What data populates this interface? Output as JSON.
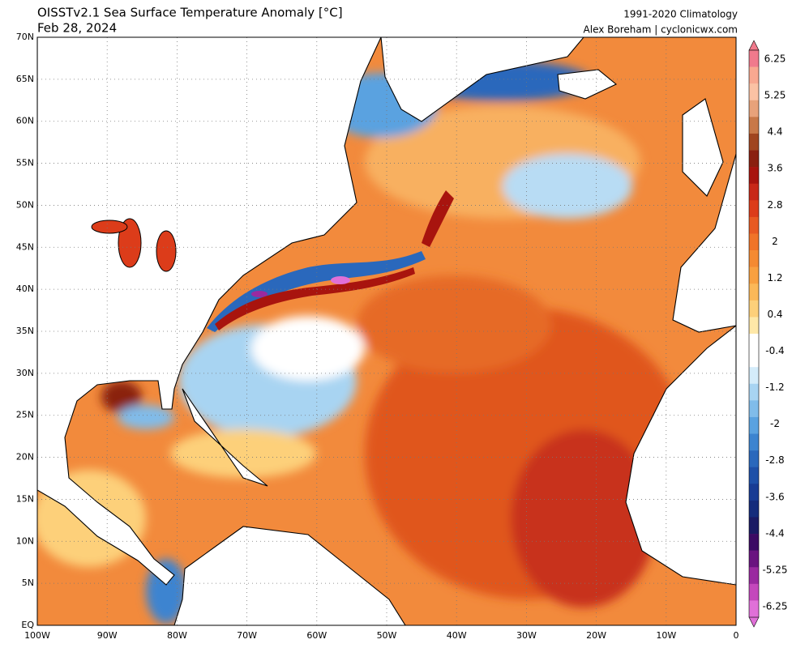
{
  "header": {
    "title": "OISSTv2.1 Sea Surface Temperature Anomaly [°C]",
    "date": "Feb 28, 2024",
    "climatology": "1991-2020 Climatology",
    "credit": "Alex Boreham | cyclonicwx.com"
  },
  "lat_labels": [
    "70N",
    "65N",
    "60N",
    "55N",
    "50N",
    "45N",
    "40N",
    "35N",
    "30N",
    "25N",
    "20N",
    "15N",
    "10N",
    "5N",
    "EQ"
  ],
  "lon_labels": [
    "100W",
    "90W",
    "80W",
    "70W",
    "60W",
    "50W",
    "40W",
    "30W",
    "20W",
    "10W",
    "0"
  ],
  "colorbar": {
    "ticks": [
      6.25,
      5.25,
      4.4,
      3.6,
      2.8,
      2,
      1.2,
      0.4,
      -0.4,
      -1.2,
      -2,
      -2.8,
      -3.6,
      -4.4,
      -5.25,
      -6.25
    ],
    "colors": [
      "#f07a8c",
      "#f8a890",
      "#fbc2a4",
      "#e8a27a",
      "#c87848",
      "#a0451f",
      "#8a2010",
      "#a8140e",
      "#c82818",
      "#dc3c1a",
      "#e85a22",
      "#f07428",
      "#f48a32",
      "#f8a040",
      "#fbb858",
      "#fdd07a",
      "#fee8a8",
      "#ffffff",
      "#ffffff",
      "#d4ecfa",
      "#a8d4f2",
      "#80bcea",
      "#5aa2e0",
      "#3c84d0",
      "#2a68bc",
      "#1e50a8",
      "#183c94",
      "#142c7c",
      "#1a1a64",
      "#3c0a64",
      "#6a1480",
      "#9a2aa0",
      "#c448bc",
      "#e070d8"
    ]
  }
}
